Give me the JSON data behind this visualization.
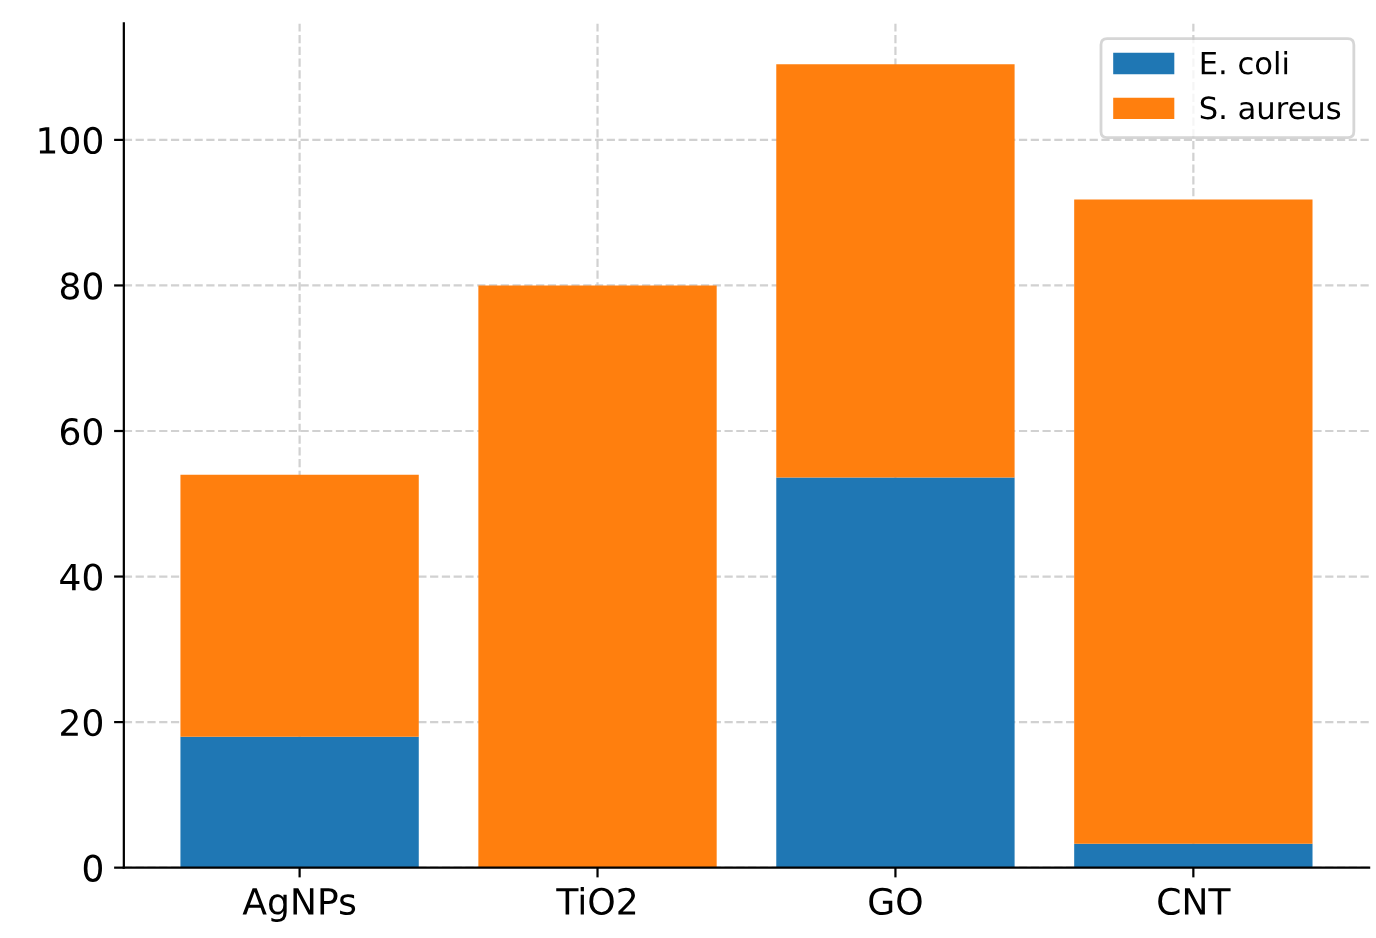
{
  "chart_data": {
    "type": "bar",
    "stacked": true,
    "categories": [
      "AgNPs",
      "TiO2",
      "GO",
      "CNT"
    ],
    "series": [
      {
        "name": "E. coli",
        "color": "#1f77b4",
        "values": [
          18,
          0,
          53.6,
          3.3
        ]
      },
      {
        "name": "S. aureus",
        "color": "#ff7f0e",
        "values": [
          36,
          80,
          56.8,
          88.5
        ]
      }
    ],
    "ylim": [
      0,
      116
    ],
    "yticks": [
      0,
      20,
      40,
      60,
      80,
      100
    ],
    "grid": true,
    "line_style": "dashed",
    "legend": "top right"
  }
}
